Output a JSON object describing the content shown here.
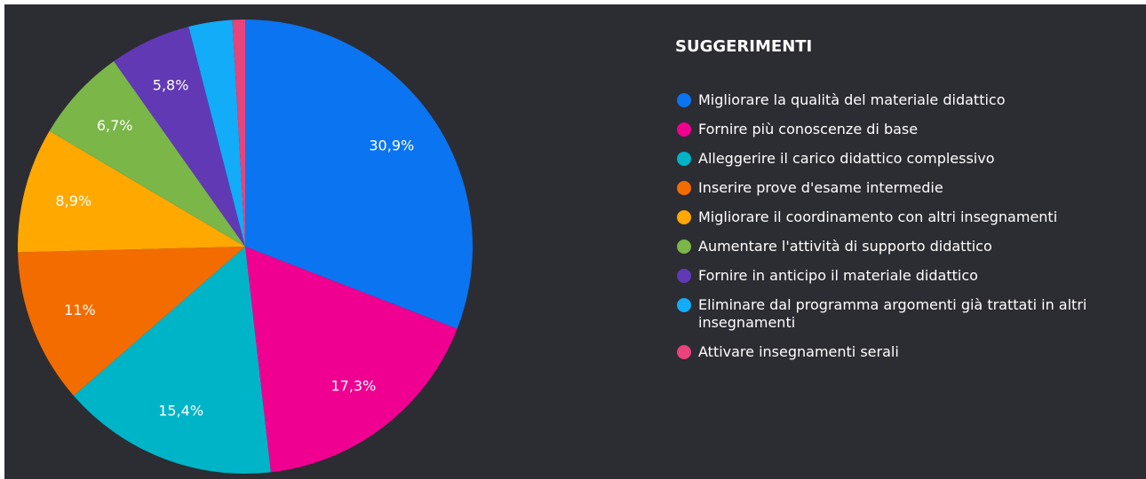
{
  "chart_data": {
    "type": "pie",
    "title": "SUGGERIMENTI",
    "categories": [
      "Migliorare la qualità del materiale didattico",
      "Fornire più conoscenze di base",
      "Alleggerire il carico didattico complessivo",
      "Inserire prove d'esame intermedie",
      "Migliorare il coordinamento con altri insegnamenti",
      "Aumentare l'attività di supporto didattico",
      "Fornire in anticipo il materiale didattico",
      "Eliminare dal programma argomenti già trattati in altri insegnamenti",
      "Attivare insegnamenti serali"
    ],
    "values": [
      30.9,
      17.3,
      15.4,
      11,
      8.9,
      6.7,
      5.8,
      3.1,
      0.9
    ],
    "value_labels": [
      "30,9%",
      "17,3%",
      "15,4%",
      "11%",
      "8,9%",
      "6,7%",
      "5,8%",
      null,
      null
    ],
    "colors": [
      "#0b74f0",
      "#ef0090",
      "#00b4c8",
      "#f26c00",
      "#ffa800",
      "#7ab648",
      "#6139b5",
      "#12acf8",
      "#e8437a"
    ]
  }
}
